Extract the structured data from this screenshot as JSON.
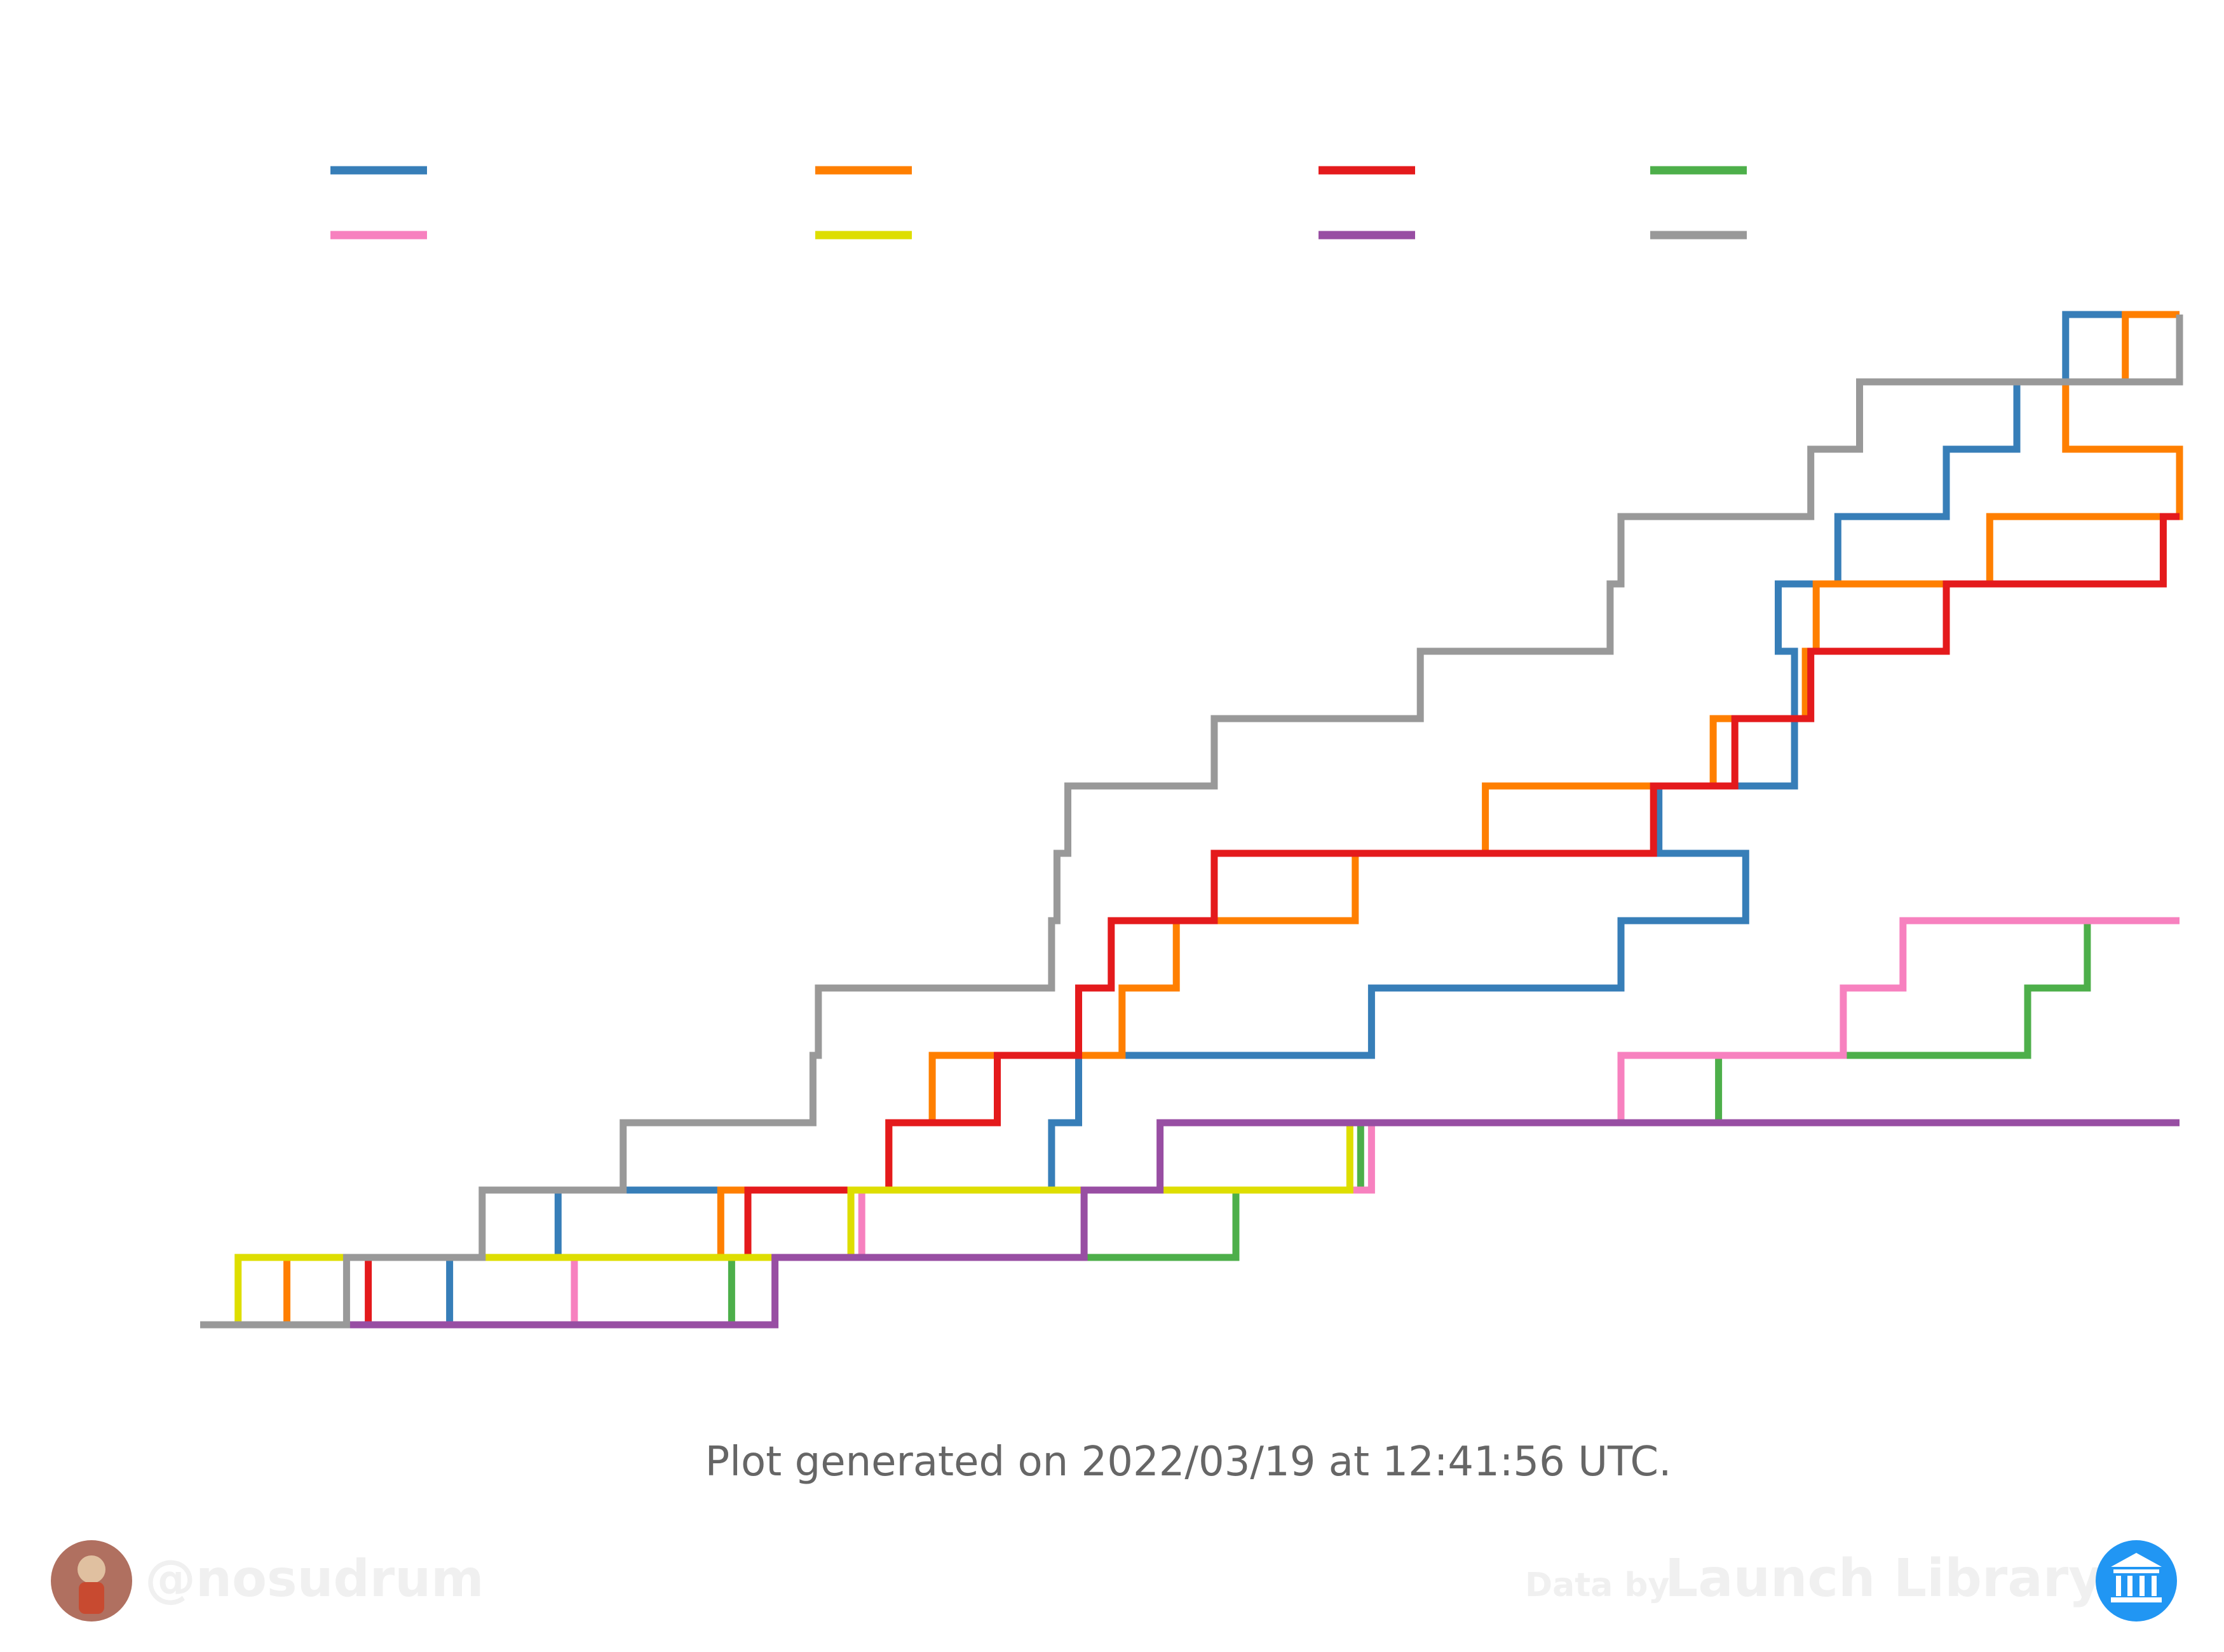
{
  "footer": {
    "generated_text": "Plot generated on 2022/03/19 at 12:41:56 UTC.",
    "author_handle": "@nosudrum",
    "data_by_label": "Data by",
    "data_source": "Launch Library 2"
  },
  "icons": {
    "author_avatar": "astronaut-avatar-icon",
    "source_logo": "library-building-icon"
  },
  "chart_data": {
    "type": "line",
    "step": true,
    "title": "",
    "xlabel": "",
    "ylabel": "",
    "grid": false,
    "legend_location": "top",
    "legend_columns": 4,
    "xlim": [
      0,
      365
    ],
    "ylim": [
      0,
      15
    ],
    "baseline_color": "#999999",
    "series": [
      {
        "color": "#377eb8",
        "steps": [
          [
            46,
            1
          ],
          [
            66,
            2
          ],
          [
            157,
            3
          ],
          [
            162,
            4
          ],
          [
            216,
            5
          ],
          [
            262,
            6
          ],
          [
            285,
            7
          ],
          [
            269,
            8
          ],
          [
            294,
            9
          ],
          [
            294,
            10
          ],
          [
            291,
            11
          ],
          [
            302,
            12
          ],
          [
            322,
            13
          ],
          [
            335,
            14
          ],
          [
            344,
            15
          ]
        ]
      },
      {
        "color": "#ff7f00",
        "steps": [
          [
            16,
            1
          ],
          [
            96,
            2
          ],
          [
            127,
            3
          ],
          [
            135,
            4
          ],
          [
            170,
            5
          ],
          [
            180,
            6
          ],
          [
            213,
            7
          ],
          [
            237,
            8
          ],
          [
            279,
            9
          ],
          [
            296,
            10
          ],
          [
            298,
            11
          ],
          [
            330,
            12
          ],
          [
            365,
            13
          ],
          [
            344,
            14
          ],
          [
            355,
            15
          ]
        ]
      },
      {
        "color": "#e41a1c",
        "steps": [
          [
            31,
            1
          ],
          [
            101,
            2
          ],
          [
            127,
            3
          ],
          [
            147,
            4
          ],
          [
            162,
            5
          ],
          [
            168,
            6
          ],
          [
            187,
            7
          ],
          [
            268,
            8
          ],
          [
            283,
            9
          ],
          [
            297,
            10
          ],
          [
            322,
            11
          ],
          [
            362,
            12
          ]
        ]
      },
      {
        "color": "#4daf4a",
        "steps": [
          [
            98,
            1
          ],
          [
            191,
            2
          ],
          [
            214,
            3
          ],
          [
            280,
            4
          ],
          [
            337,
            5
          ],
          [
            348,
            6
          ]
        ]
      },
      {
        "color": "#f781bf",
        "steps": [
          [
            69,
            1
          ],
          [
            122,
            2
          ],
          [
            216,
            3
          ],
          [
            262,
            4
          ],
          [
            303,
            5
          ],
          [
            314,
            6
          ]
        ]
      },
      {
        "color": "#dede00",
        "steps": [
          [
            7,
            1
          ],
          [
            120,
            2
          ],
          [
            212,
            3
          ]
        ]
      },
      {
        "color": "#984ea3",
        "steps": [
          [
            106,
            1
          ],
          [
            163,
            2
          ],
          [
            177,
            3
          ]
        ]
      },
      {
        "color": "#999999",
        "steps": [
          [
            27,
            1
          ],
          [
            52,
            2
          ],
          [
            78,
            3
          ],
          [
            113,
            4
          ],
          [
            114,
            5
          ],
          [
            157,
            6
          ],
          [
            158,
            7
          ],
          [
            160,
            8
          ],
          [
            187,
            9
          ],
          [
            225,
            10
          ],
          [
            260,
            11
          ],
          [
            262,
            12
          ],
          [
            297,
            13
          ],
          [
            306,
            14
          ],
          [
            365,
            15
          ]
        ]
      }
    ]
  }
}
